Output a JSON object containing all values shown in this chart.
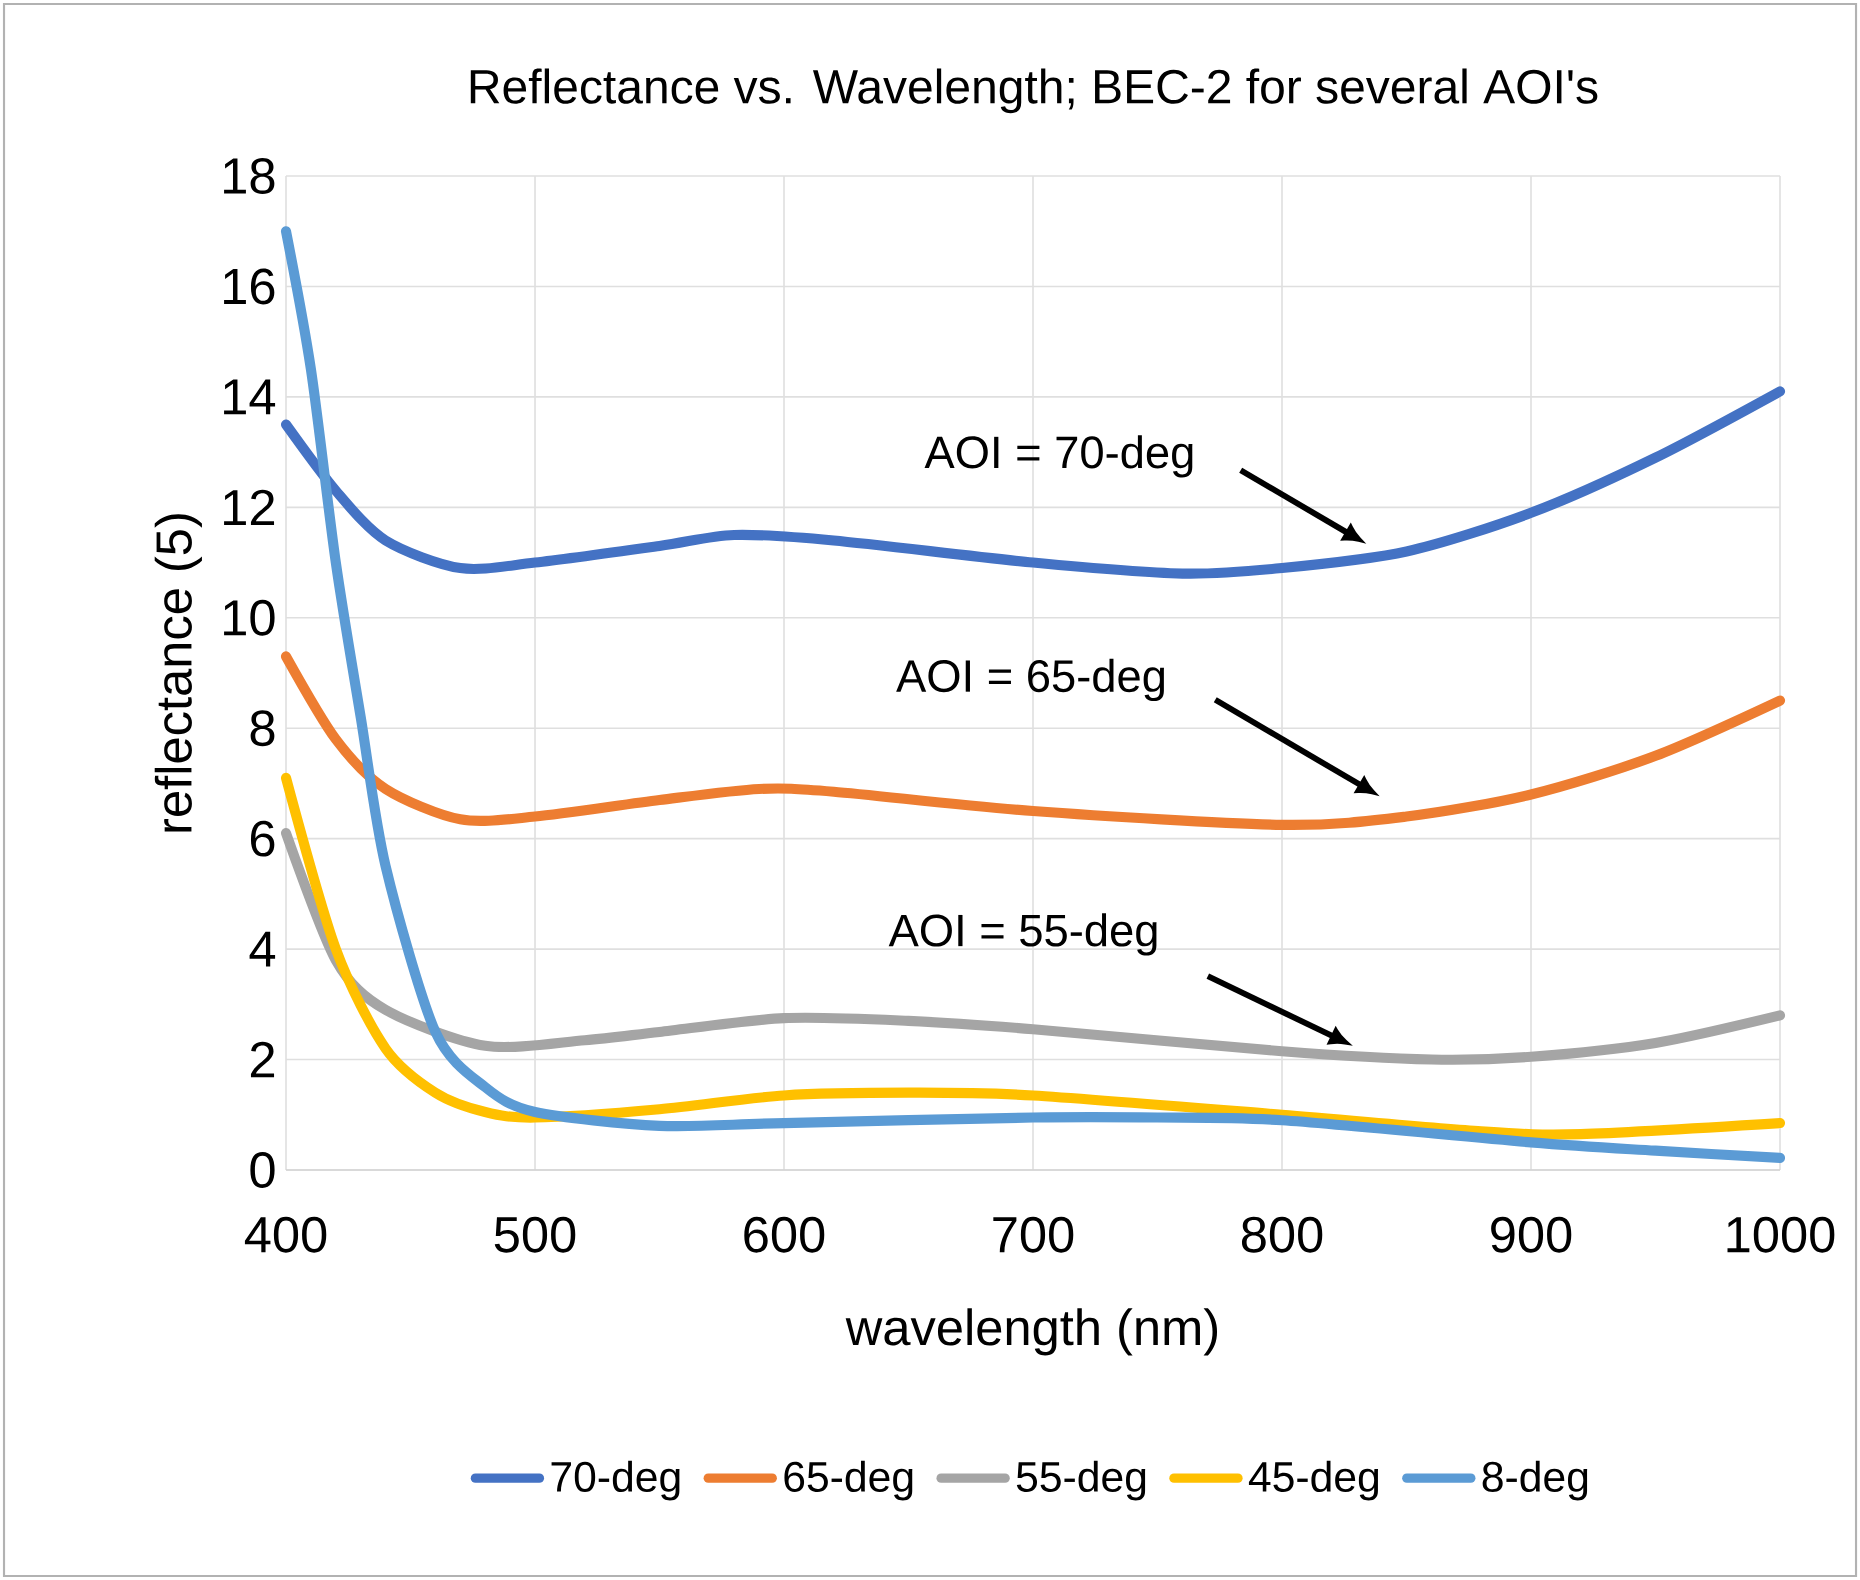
{
  "chart_data": {
    "type": "line",
    "title": "Reflectance vs. Wavelength; BEC-2 for several AOI's",
    "xlabel": "wavelength (nm)",
    "ylabel": "reflectance (5)",
    "xlim": [
      400,
      1000
    ],
    "ylim": [
      0,
      18
    ],
    "xticks": [
      400,
      500,
      600,
      700,
      800,
      900,
      1000
    ],
    "yticks": [
      0,
      2,
      4,
      6,
      8,
      10,
      12,
      14,
      16,
      18
    ],
    "grid": true,
    "legend": "bottom",
    "series": [
      {
        "name": "70-deg",
        "color": "#4472c4",
        "x": [
          400,
          420,
          440,
          470,
          500,
          550,
          580,
          620,
          700,
          760,
          800,
          850,
          900,
          950,
          1000
        ],
        "values": [
          13.5,
          12.3,
          11.4,
          10.9,
          11.0,
          11.3,
          11.5,
          11.4,
          11.0,
          10.8,
          10.9,
          11.2,
          11.9,
          12.9,
          14.1
        ]
      },
      {
        "name": "65-deg",
        "color": "#ed7d31",
        "x": [
          400,
          420,
          440,
          470,
          500,
          550,
          590,
          620,
          700,
          800,
          850,
          900,
          950,
          1000
        ],
        "values": [
          9.3,
          7.8,
          6.9,
          6.35,
          6.4,
          6.7,
          6.9,
          6.85,
          6.5,
          6.25,
          6.4,
          6.8,
          7.5,
          8.5
        ]
      },
      {
        "name": "55-deg",
        "color": "#a5a5a5",
        "x": [
          400,
          420,
          440,
          480,
          520,
          550,
          600,
          650,
          700,
          800,
          860,
          900,
          950,
          1000
        ],
        "values": [
          6.1,
          3.8,
          2.9,
          2.25,
          2.35,
          2.5,
          2.75,
          2.7,
          2.55,
          2.15,
          2.0,
          2.05,
          2.3,
          2.8
        ]
      },
      {
        "name": "45-deg",
        "color": "#ffc000",
        "x": [
          400,
          420,
          440,
          460,
          480,
          500,
          550,
          600,
          650,
          700,
          800,
          880,
          920,
          1000
        ],
        "values": [
          7.1,
          4.0,
          2.2,
          1.4,
          1.05,
          0.95,
          1.1,
          1.35,
          1.4,
          1.35,
          1.0,
          0.7,
          0.65,
          0.85
        ]
      },
      {
        "name": "8-deg",
        "color": "#5b9bd5",
        "x": [
          400,
          410,
          420,
          430,
          440,
          460,
          480,
          500,
          550,
          600,
          700,
          750,
          800,
          900,
          950,
          1000
        ],
        "values": [
          17.0,
          14.5,
          11.0,
          8.2,
          5.5,
          2.5,
          1.5,
          1.05,
          0.8,
          0.85,
          0.95,
          0.95,
          0.9,
          0.5,
          0.35,
          0.22
        ]
      }
    ],
    "annotations": [
      "AOI = 70-deg",
      "AOI = 65-deg",
      "AOI = 55-deg"
    ]
  }
}
